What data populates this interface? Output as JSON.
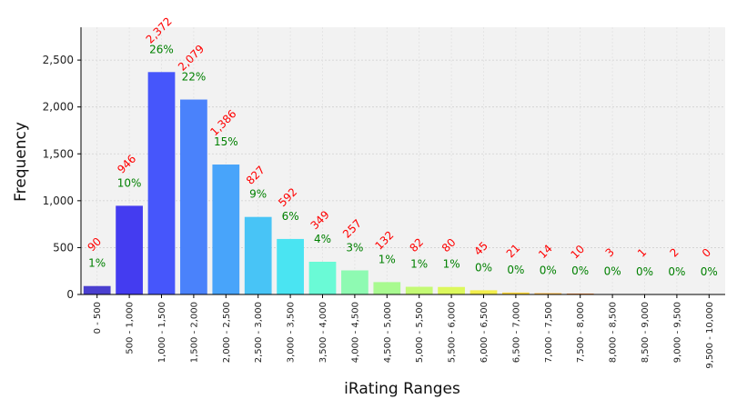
{
  "chart_data": {
    "type": "bar",
    "xlabel": "iRating Ranges",
    "ylabel": "Frequency",
    "ylim": [
      0,
      2850
    ],
    "yticks": [
      0,
      500,
      1000,
      1500,
      2000,
      2500
    ],
    "ytick_labels": [
      "0",
      "500",
      "1,000",
      "1,500",
      "2,000",
      "2,500"
    ],
    "grid": true,
    "categories": [
      "0 - 500",
      "500 - 1,000",
      "1,000 - 1,500",
      "1,500 - 2,000",
      "2,000 - 2,500",
      "2,500 - 3,000",
      "3,000 - 3,500",
      "3,500 - 4,000",
      "4,000 - 4,500",
      "4,500 - 5,000",
      "5,000 - 5,500",
      "5,500 - 6,000",
      "6,000 - 6,500",
      "6,500 - 7,000",
      "7,000 - 7,500",
      "7,500 - 8,000",
      "8,000 - 8,500",
      "8,500 - 9,000",
      "9,000 - 9,500",
      "9,500 - 10,000"
    ],
    "values": [
      90,
      946,
      2372,
      2079,
      1386,
      827,
      592,
      349,
      257,
      132,
      82,
      80,
      45,
      21,
      14,
      10,
      3,
      1,
      2,
      0
    ],
    "value_labels": [
      "90",
      "946",
      "2,372",
      "2,079",
      "1,386",
      "827",
      "592",
      "349",
      "257",
      "132",
      "82",
      "80",
      "45",
      "21",
      "14",
      "10",
      "3",
      "1",
      "2",
      "0"
    ],
    "percent_labels": [
      "1%",
      "10%",
      "26%",
      "22%",
      "15%",
      "9%",
      "6%",
      "4%",
      "3%",
      "1%",
      "1%",
      "1%",
      "0%",
      "0%",
      "0%",
      "0%",
      "0%",
      "0%",
      "0%",
      "0%"
    ],
    "bar_colors": [
      "#4a3fcf",
      "#443cf0",
      "#4656fb",
      "#4a82fb",
      "#48a4fa",
      "#48c4f6",
      "#4ae4f2",
      "#6afad6",
      "#8efab2",
      "#a8fa90",
      "#c4fa74",
      "#dcf85c",
      "#f2ee4c",
      "#fcd83e",
      "#fdb63a",
      "#fd8e38",
      "#fb6236",
      "#f43c2c",
      "#e02020",
      "#c01818"
    ],
    "value_label_color": "#ff0000",
    "percent_label_color": "#008000",
    "plot_background": "#f2f2f2"
  }
}
